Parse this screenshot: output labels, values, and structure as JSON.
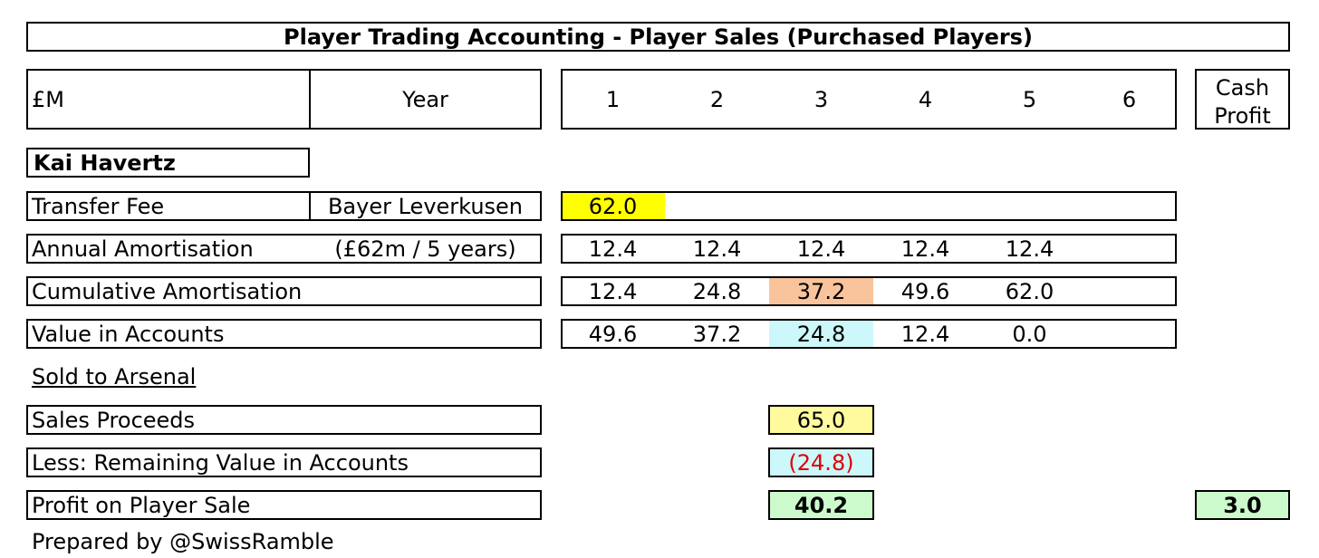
{
  "title": "Player Trading Accounting - Player Sales (Purchased Players)",
  "header": {
    "unit": "£M",
    "year_label": "Year",
    "years": [
      "1",
      "2",
      "3",
      "4",
      "5",
      "6"
    ],
    "cash_profit_line1": "Cash",
    "cash_profit_line2": "Profit"
  },
  "player": "Kai Havertz",
  "rows": {
    "transfer_fee": {
      "label": "Transfer Fee",
      "note": "Bayer Leverkusen",
      "values": [
        "62.0"
      ]
    },
    "annual_amortisation": {
      "label": "Annual Amortisation",
      "note": "(£62m / 5 years)",
      "values": [
        "12.4",
        "12.4",
        "12.4",
        "12.4",
        "12.4"
      ]
    },
    "cumulative_amortisation": {
      "label": "Cumulative Amortisation",
      "values": [
        "12.4",
        "24.8",
        "37.2",
        "49.6",
        "62.0"
      ]
    },
    "value_in_accounts": {
      "label": "Value in Accounts",
      "values": [
        "49.6",
        "37.2",
        "24.8",
        "12.4",
        "0.0"
      ]
    }
  },
  "sold_to": "Sold to Arsenal",
  "sales_proceeds": {
    "label": "Sales Proceeds",
    "value": "65.0"
  },
  "less_remaining": {
    "label": "Less: Remaining Value in Accounts",
    "value": "(24.8)"
  },
  "profit": {
    "label": "Profit on Player Sale",
    "value": "40.2",
    "cash_value": "3.0"
  },
  "footer": "Prepared by @SwissRamble",
  "colors": {
    "transfer_fee_highlight": "#ffff00",
    "cumulative_highlight": "#f9c49c",
    "value_highlight": "#ccf7fb",
    "sales_proceeds_fill": "#fffa9e",
    "remaining_fill": "#ccf7fb",
    "profit_fill": "#ccfacc",
    "negative_text": "#e00000"
  }
}
